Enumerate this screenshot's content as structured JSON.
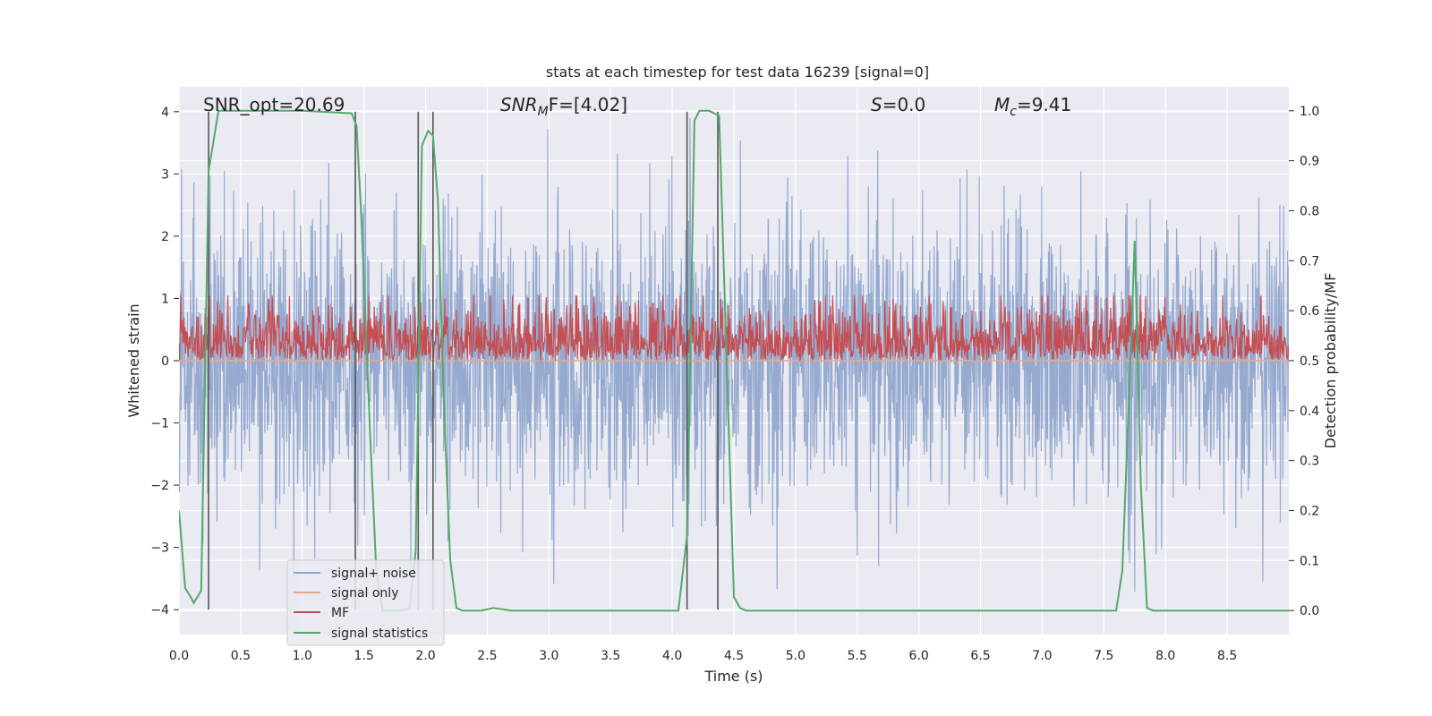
{
  "chart_data": {
    "type": "line",
    "title": "stats at each timestep for test data 16239 [signal=0]",
    "xlabel": "Time (s)",
    "ylabel": "Whitened strain",
    "ylabel_right": "Detection probability/MF",
    "xlim": [
      0.0,
      9.0
    ],
    "ylim": [
      -4.4,
      4.4
    ],
    "ylim_right": [
      -0.048,
      1.048
    ],
    "x_ticks": [
      0.0,
      0.5,
      1.0,
      1.5,
      2.0,
      2.5,
      3.0,
      3.5,
      4.0,
      4.5,
      5.0,
      5.5,
      6.0,
      6.5,
      7.0,
      7.5,
      8.0,
      8.5
    ],
    "x_tick_labels": [
      "0.0",
      "0.5",
      "1.0",
      "1.5",
      "2.0",
      "2.5",
      "3.0",
      "3.5",
      "4.0",
      "4.5",
      "5.0",
      "5.5",
      "6.0",
      "6.5",
      "7.0",
      "7.5",
      "8.0",
      "8.5"
    ],
    "y_ticks": [
      -4,
      -3,
      -2,
      -1,
      0,
      1,
      2,
      3,
      4
    ],
    "y_tick_labels": [
      "−4",
      "−3",
      "−2",
      "−1",
      "0",
      "1",
      "2",
      "3",
      "4"
    ],
    "y_right_ticks": [
      0.0,
      0.1,
      0.2,
      0.3,
      0.4,
      0.5,
      0.6,
      0.7,
      0.8,
      0.9,
      1.0
    ],
    "y_right_tick_labels": [
      "0.0",
      "0.1",
      "0.2",
      "0.3",
      "0.4",
      "0.5",
      "0.6",
      "0.7",
      "0.8",
      "0.9",
      "1.0"
    ],
    "annotations": {
      "snr_opt": "SNR_opt=20.69",
      "snr_mf_prefix": "SNR",
      "snr_mf_sub": "M",
      "snr_mf_suffix": "F=[4.02]",
      "s_var": "S",
      "s_value": "=0.0",
      "mc_var": "M",
      "mc_sub": "c",
      "mc_value": "=9.41"
    },
    "legend": [
      "signal+ noise",
      "signal only",
      "MF",
      "signal statistics"
    ],
    "series": [
      {
        "name": "signal+ noise",
        "color": "#8da3cc",
        "kind": "noise",
        "x_range": [
          0.0,
          9.0
        ],
        "approx_envelope": [
          -3.9,
          3.9
        ],
        "approx_std": 1.1
      },
      {
        "name": "signal only",
        "color": "#e8a888",
        "kind": "line",
        "x": [
          0.0,
          9.0
        ],
        "y": [
          0.0,
          0.0
        ]
      },
      {
        "name": "MF",
        "color": "#c44e52",
        "kind": "band",
        "axis": "right",
        "x_range": [
          0.0,
          9.0
        ],
        "approx_range": [
          0.5,
          0.62
        ]
      },
      {
        "name": "signal statistics",
        "color": "#55a868",
        "axis": "right",
        "x": [
          0.0,
          0.05,
          0.1,
          0.12,
          0.18,
          0.24,
          0.28,
          0.32,
          0.5,
          1.0,
          1.4,
          1.44,
          1.48,
          1.55,
          1.6,
          1.65,
          1.7,
          1.8,
          1.87,
          1.92,
          1.97,
          2.02,
          2.06,
          2.1,
          2.15,
          2.2,
          2.25,
          2.3,
          2.35,
          2.45,
          2.55,
          2.7,
          3.0,
          4.0,
          4.05,
          4.12,
          4.18,
          4.22,
          4.3,
          4.38,
          4.5,
          4.55,
          4.6,
          4.7,
          5.0,
          7.0,
          7.6,
          7.65,
          7.7,
          7.75,
          7.8,
          7.85,
          7.9,
          7.95,
          8.0,
          9.0
        ],
        "y": [
          0.2,
          0.045,
          0.025,
          0.015,
          0.04,
          0.88,
          0.94,
          1.0,
          1.0,
          1.0,
          0.995,
          0.97,
          0.78,
          0.35,
          0.08,
          0.0,
          0.0,
          0.0,
          0.005,
          0.12,
          0.93,
          0.96,
          0.95,
          0.82,
          0.4,
          0.1,
          0.005,
          0.0,
          0.0,
          0.0,
          0.005,
          0.0,
          0.0,
          0.0,
          0.0,
          0.15,
          0.98,
          1.0,
          1.0,
          0.99,
          0.027,
          0.005,
          0.0,
          0.0,
          0.0,
          0.0,
          0.0,
          0.08,
          0.4,
          0.74,
          0.25,
          0.005,
          0.0,
          0.0,
          0.0,
          0.0
        ]
      }
    ],
    "vertical_lines": [
      0.24,
      1.43,
      1.94,
      2.06,
      4.12,
      4.37
    ]
  }
}
